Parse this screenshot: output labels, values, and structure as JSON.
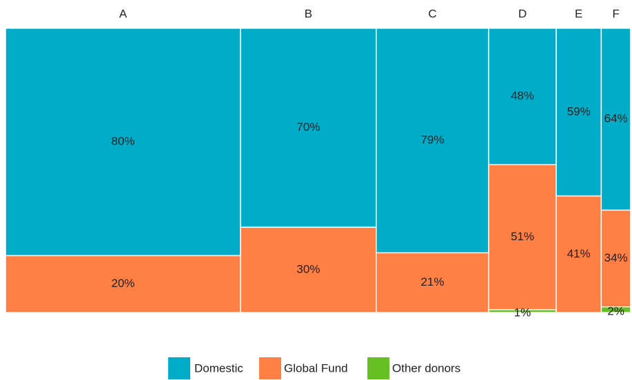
{
  "chart_data": {
    "type": "mosaic",
    "categories": [
      "A",
      "B",
      "C",
      "D",
      "E",
      "F"
    ],
    "widths": [
      37.6,
      21.7,
      18.0,
      10.8,
      7.2,
      4.7
    ],
    "series": [
      {
        "name": "Domestic",
        "color": "#00acc8",
        "values": [
          80,
          70,
          79,
          48,
          59,
          64
        ],
        "value_labels": [
          "80%",
          "70%",
          "79%",
          "48%",
          "59%",
          "64%"
        ]
      },
      {
        "name": "Global Fund",
        "color": "#ff7f45",
        "values": [
          20,
          30,
          21,
          51,
          41,
          34
        ],
        "value_labels": [
          "20%",
          "30%",
          "21%",
          "51%",
          "41%",
          "34%"
        ]
      },
      {
        "name": "Other donors",
        "color": "#66c024",
        "values": [
          0,
          0,
          0,
          1,
          0,
          2
        ],
        "value_labels": [
          null,
          null,
          null,
          "1%",
          null,
          "2%"
        ]
      }
    ],
    "legend": "bottom"
  }
}
